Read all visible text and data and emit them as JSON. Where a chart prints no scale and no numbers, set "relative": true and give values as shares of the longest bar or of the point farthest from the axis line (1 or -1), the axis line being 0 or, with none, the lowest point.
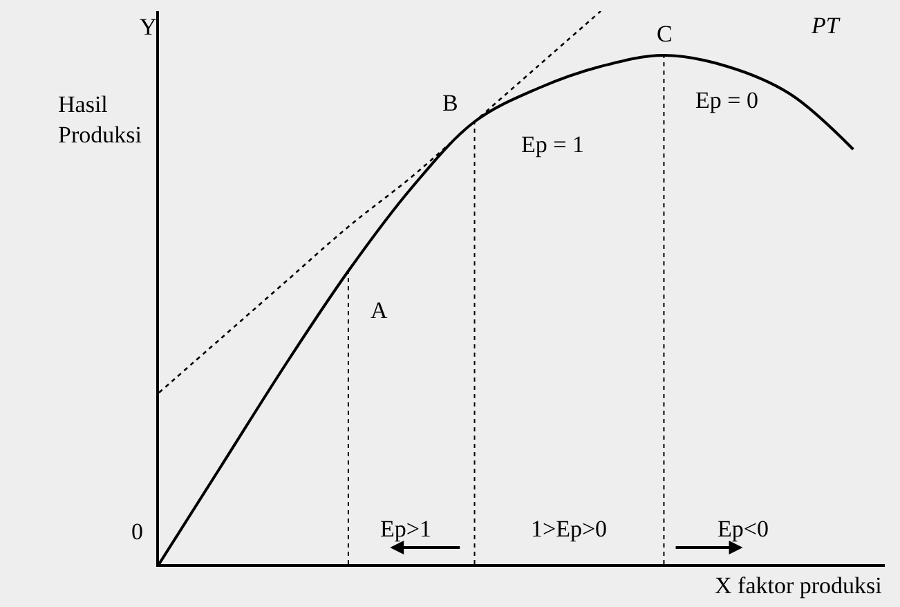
{
  "chart_data": {
    "type": "line",
    "relative": true,
    "ylabel": "Hasil Produksi",
    "xlabel": "X faktor produksi",
    "marker": "none",
    "categories": [
      null,
      null,
      null,
      null,
      null,
      null,
      null,
      null,
      null,
      null,
      null,
      null
    ],
    "series": [
      {
        "name": "PT",
        "color": "#000000",
        "line_style": "solid",
        "values": [
          0,
          0.18,
          0.36,
          0.53,
          0.68,
          0.8,
          0.86,
          0.9,
          0.92,
          0.9,
          0.85,
          0.75
        ]
      },
      {
        "color": "#000000",
        "line_style": "dotted",
        "values": [
          0.31,
          0.41,
          0.51,
          0.61,
          0.7,
          0.8,
          0.9,
          1.0,
          null,
          null,
          null,
          null
        ]
      }
    ],
    "annotations": [
      "Y",
      "0",
      "A",
      "B",
      "C",
      "Ep = 1",
      "Ep = 0",
      "Ep>1",
      "1>Ep>0",
      "Ep<0"
    ]
  }
}
